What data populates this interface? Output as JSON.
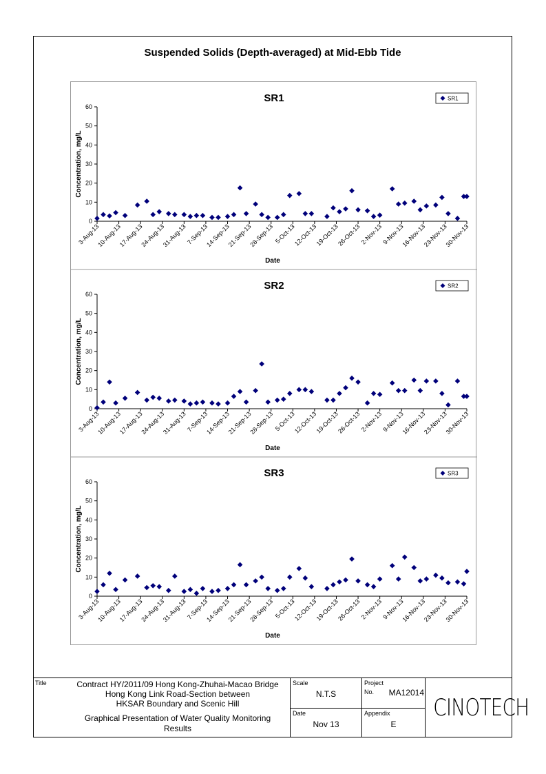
{
  "page_title": "Suspended Solids (Depth-averaged) at Mid-Ebb Tide",
  "chart_data": [
    {
      "type": "scatter",
      "title": "SR1",
      "xlabel": "Date",
      "ylabel": "Concentration, mg/L",
      "ylim": [
        0,
        60
      ],
      "yticks": [
        0,
        10,
        20,
        30,
        40,
        50,
        60
      ],
      "xlim": [
        "2013-08-03",
        "2013-11-30"
      ],
      "xticks": [
        "3-Aug-13",
        "10-Aug-13",
        "17-Aug-13",
        "24-Aug-13",
        "31-Aug-13",
        "7-Sep-13",
        "14-Sep-13",
        "21-Sep-13",
        "28-Sep-13",
        "5-Oct-13",
        "12-Oct-13",
        "19-Oct-13",
        "26-Oct-13",
        "2-Nov-13",
        "9-Nov-13",
        "16-Nov-13",
        "23-Nov-13",
        "30-Nov-13"
      ],
      "legend": "top-right",
      "marker": "diamond",
      "color": "#00007a",
      "series": [
        {
          "name": "SR1",
          "x": [
            "2013-08-03",
            "2013-08-05",
            "2013-08-07",
            "2013-08-09",
            "2013-08-12",
            "2013-08-16",
            "2013-08-19",
            "2013-08-21",
            "2013-08-23",
            "2013-08-26",
            "2013-08-28",
            "2013-08-31",
            "2013-09-02",
            "2013-09-04",
            "2013-09-06",
            "2013-09-09",
            "2013-09-11",
            "2013-09-14",
            "2013-09-16",
            "2013-09-18",
            "2013-09-20",
            "2013-09-23",
            "2013-09-25",
            "2013-09-27",
            "2013-09-30",
            "2013-10-02",
            "2013-10-04",
            "2013-10-07",
            "2013-10-09",
            "2013-10-11",
            "2013-10-16",
            "2013-10-18",
            "2013-10-20",
            "2013-10-22",
            "2013-10-24",
            "2013-10-26",
            "2013-10-29",
            "2013-10-31",
            "2013-11-02",
            "2013-11-06",
            "2013-11-08",
            "2013-11-10",
            "2013-11-13",
            "2013-11-15",
            "2013-11-17",
            "2013-11-20",
            "2013-11-22",
            "2013-11-24",
            "2013-11-27",
            "2013-11-29",
            "2013-11-30"
          ],
          "y": [
            1.5,
            3.5,
            2.8,
            4.5,
            3,
            8.5,
            10.5,
            3.5,
            5,
            4,
            3.5,
            3.5,
            2.5,
            3,
            3,
            2,
            2,
            2.5,
            3.5,
            17.5,
            4,
            9,
            3.5,
            2,
            2,
            3.5,
            13.5,
            14.5,
            4,
            4,
            2.5,
            7,
            5,
            6.5,
            16,
            6,
            5.5,
            2.5,
            3.2,
            17,
            9,
            9.5,
            10.5,
            6,
            8,
            8.5,
            12.5,
            4,
            1.5,
            13,
            13
          ]
        }
      ]
    },
    {
      "type": "scatter",
      "title": "SR2",
      "xlabel": "Date",
      "ylabel": "Concentration, mg/L",
      "ylim": [
        0,
        60
      ],
      "yticks": [
        0,
        10,
        20,
        30,
        40,
        50,
        60
      ],
      "xlim": [
        "2013-08-03",
        "2013-11-30"
      ],
      "xticks": [
        "3-Aug-13",
        "10-Aug-13",
        "17-Aug-13",
        "24-Aug-13",
        "31-Aug-13",
        "7-Sep-13",
        "14-Sep-13",
        "21-Sep-13",
        "28-Sep-13",
        "5-Oct-13",
        "12-Oct-13",
        "19-Oct-13",
        "26-Oct-13",
        "2-Nov-13",
        "9-Nov-13",
        "16-Nov-13",
        "23-Nov-13",
        "30-Nov-13"
      ],
      "legend": "top-right",
      "marker": "diamond",
      "color": "#00007a",
      "series": [
        {
          "name": "SR2",
          "x": [
            "2013-08-03",
            "2013-08-05",
            "2013-08-07",
            "2013-08-09",
            "2013-08-12",
            "2013-08-16",
            "2013-08-19",
            "2013-08-21",
            "2013-08-23",
            "2013-08-26",
            "2013-08-28",
            "2013-08-31",
            "2013-09-02",
            "2013-09-04",
            "2013-09-06",
            "2013-09-09",
            "2013-09-11",
            "2013-09-14",
            "2013-09-16",
            "2013-09-18",
            "2013-09-20",
            "2013-09-23",
            "2013-09-25",
            "2013-09-27",
            "2013-09-30",
            "2013-10-02",
            "2013-10-04",
            "2013-10-07",
            "2013-10-09",
            "2013-10-11",
            "2013-10-16",
            "2013-10-18",
            "2013-10-20",
            "2013-10-22",
            "2013-10-24",
            "2013-10-26",
            "2013-10-29",
            "2013-10-31",
            "2013-11-02",
            "2013-11-06",
            "2013-11-08",
            "2013-11-10",
            "2013-11-13",
            "2013-11-15",
            "2013-11-17",
            "2013-11-20",
            "2013-11-22",
            "2013-11-24",
            "2013-11-27",
            "2013-11-29",
            "2013-11-30"
          ],
          "y": [
            0.5,
            3.5,
            14,
            3,
            5.5,
            8.5,
            4.5,
            6,
            5.5,
            4,
            4.5,
            4,
            2.5,
            3,
            3.5,
            3,
            2.5,
            3,
            6.5,
            9,
            3.5,
            9.5,
            23.5,
            3.5,
            4.5,
            5,
            8,
            10,
            10,
            9,
            4.5,
            4.5,
            8,
            11,
            16,
            14,
            3,
            8,
            7.5,
            13.5,
            9.5,
            9.5,
            15,
            9.5,
            14.5,
            14.5,
            8,
            2,
            14.5,
            6.5,
            6.5
          ]
        }
      ]
    },
    {
      "type": "scatter",
      "title": "SR3",
      "xlabel": "Date",
      "ylabel": "Concentration, mg/L",
      "ylim": [
        0,
        60
      ],
      "yticks": [
        0,
        10,
        20,
        30,
        40,
        50,
        60
      ],
      "xlim": [
        "2013-08-03",
        "2013-11-30"
      ],
      "xticks": [
        "3-Aug-13",
        "10-Aug-13",
        "17-Aug-13",
        "24-Aug-13",
        "31-Aug-13",
        "7-Sep-13",
        "14-Sep-13",
        "21-Sep-13",
        "28-Sep-13",
        "5-Oct-13",
        "12-Oct-13",
        "19-Oct-13",
        "26-Oct-13",
        "2-Nov-13",
        "9-Nov-13",
        "16-Nov-13",
        "23-Nov-13",
        "30-Nov-13"
      ],
      "legend": "top-right",
      "marker": "diamond",
      "color": "#00007a",
      "series": [
        {
          "name": "SR3",
          "x": [
            "2013-08-03",
            "2013-08-05",
            "2013-08-07",
            "2013-08-09",
            "2013-08-12",
            "2013-08-16",
            "2013-08-19",
            "2013-08-21",
            "2013-08-23",
            "2013-08-26",
            "2013-08-28",
            "2013-08-31",
            "2013-09-02",
            "2013-09-04",
            "2013-09-06",
            "2013-09-09",
            "2013-09-11",
            "2013-09-14",
            "2013-09-16",
            "2013-09-18",
            "2013-09-20",
            "2013-09-23",
            "2013-09-25",
            "2013-09-27",
            "2013-09-30",
            "2013-10-02",
            "2013-10-04",
            "2013-10-07",
            "2013-10-09",
            "2013-10-11",
            "2013-10-16",
            "2013-10-18",
            "2013-10-20",
            "2013-10-22",
            "2013-10-24",
            "2013-10-26",
            "2013-10-29",
            "2013-10-31",
            "2013-11-02",
            "2013-11-06",
            "2013-11-08",
            "2013-11-10",
            "2013-11-13",
            "2013-11-15",
            "2013-11-17",
            "2013-11-20",
            "2013-11-22",
            "2013-11-24",
            "2013-11-27",
            "2013-11-29",
            "2013-11-30"
          ],
          "y": [
            2.5,
            6,
            12,
            3.5,
            8.5,
            10.5,
            4.5,
            5.5,
            5,
            3,
            10.5,
            2.5,
            3.5,
            1.5,
            4,
            2.5,
            3,
            4,
            6,
            16.5,
            6,
            8,
            10,
            4,
            3,
            4,
            10,
            14.5,
            9.5,
            5,
            4,
            6,
            7.5,
            8.5,
            19.5,
            8,
            6,
            5,
            9,
            16,
            9,
            20.5,
            15,
            8,
            9,
            11,
            9.5,
            7,
            7.5,
            6.5,
            13
          ]
        }
      ]
    }
  ],
  "title_block": {
    "title_caption": "Title",
    "contract_lines": [
      "Contract HY/2011/09 Hong Kong-Zhuhai-Macao Bridge",
      "Hong Kong Link Road-Section between",
      "HKSAR Boundary and Scenic Hill"
    ],
    "subtitle_lines": [
      "Graphical Presentation of Water Quality Monitoring",
      "Results"
    ],
    "scale_caption": "Scale",
    "scale_value": "N.T.S",
    "date_caption": "Date",
    "date_value": "Nov 13",
    "project_caption": "Project",
    "project_no_caption": "No.",
    "project_no": "MA12014",
    "appendix_caption": "Appendix",
    "appendix_value": "E",
    "logo_text": "CINOTECH"
  }
}
